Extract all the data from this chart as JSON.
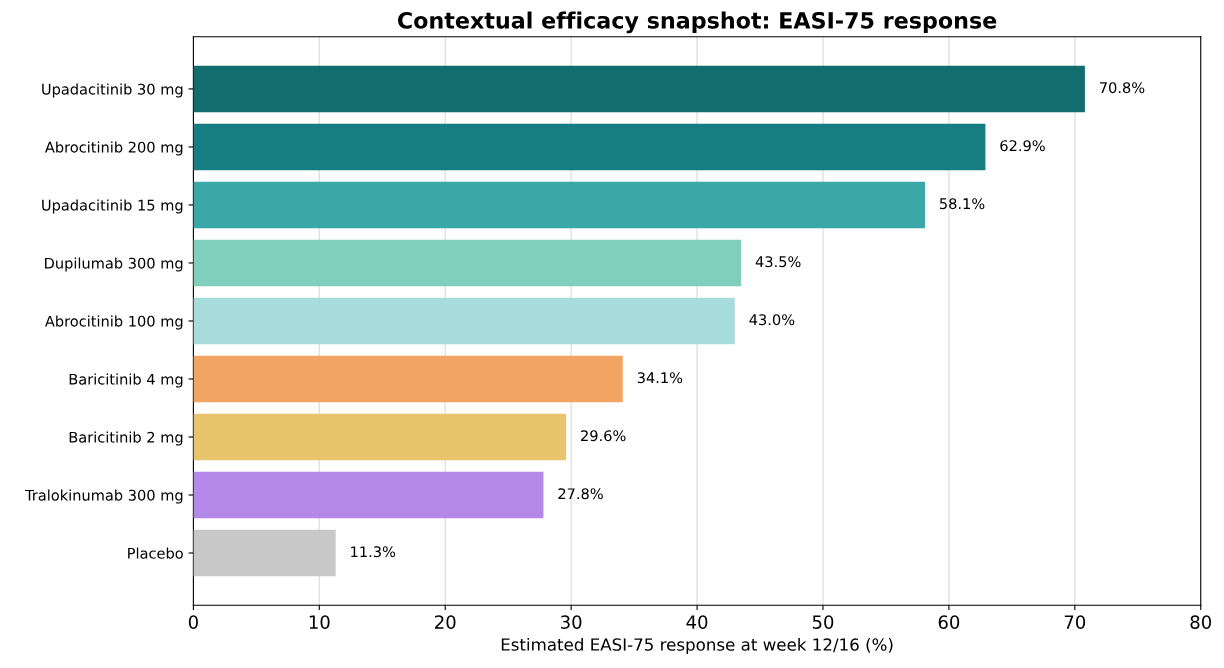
{
  "chart_data": {
    "type": "bar",
    "orientation": "horizontal",
    "title": "Contextual efficacy snapshot: EASI-75 response",
    "xlabel": "Estimated EASI-75 response at week 12/16 (%)",
    "categories": [
      "Upadacitinib 30 mg",
      "Abrocitinib 200 mg",
      "Upadacitinib 15 mg",
      "Dupilumab 300 mg",
      "Abrocitinib 100 mg",
      "Baricitinib 4 mg",
      "Baricitinib 2 mg",
      "Tralokinumab 300 mg",
      "Placebo"
    ],
    "values": [
      70.8,
      62.9,
      58.1,
      43.5,
      43.0,
      34.1,
      29.6,
      27.8,
      11.3
    ],
    "value_labels": [
      "70.8%",
      "62.9%",
      "58.1%",
      "43.5%",
      "43.0%",
      "34.1%",
      "29.6%",
      "27.8%",
      "11.3%"
    ],
    "colors": [
      "#126e6e",
      "#167d82",
      "#3ba8a8",
      "#80cfbd",
      "#a8dbdc",
      "#f2a462",
      "#e8c46c",
      "#b388e8",
      "#c8c8c8"
    ],
    "xlim": [
      0,
      80
    ],
    "xticks": [
      0,
      10,
      20,
      30,
      40,
      50,
      60,
      70,
      80
    ],
    "grid": "x"
  }
}
